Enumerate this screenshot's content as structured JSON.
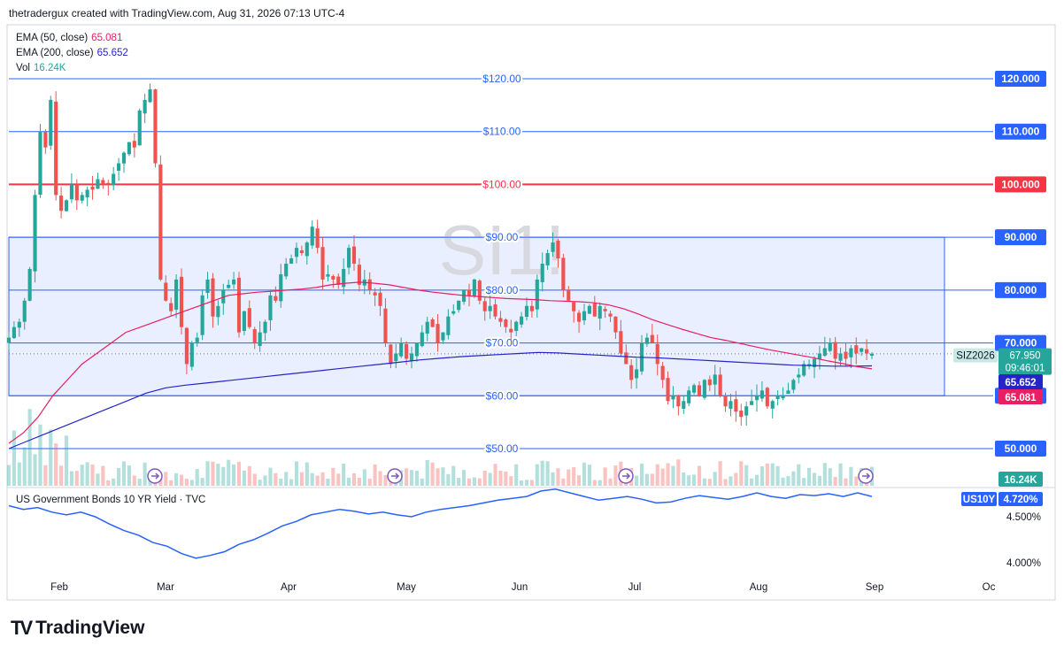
{
  "header": {
    "attribution": "thetradergux created with TradingView.com, Aug 31, 2026 07:13 UTC-4"
  },
  "watermark": "SI1!",
  "legend": [
    {
      "label": "EMA (50, close)",
      "value": "65.081",
      "color": "#e91e63"
    },
    {
      "label": "EMA (200, close)",
      "value": "65.652",
      "color": "#2424c8"
    },
    {
      "label": "Vol",
      "value": "16.24K",
      "color": "#26a69a"
    }
  ],
  "indicator": {
    "title": "US Government Bonds 10 YR Yield · TVC",
    "symbol": "US10Y",
    "value": "4.720%",
    "ticks": [
      "4.500%",
      "4.000%"
    ]
  },
  "footer": {
    "brand": "TradingView"
  },
  "chart_data": {
    "type": "candlestick",
    "symbol": "SIZ2026",
    "last_price": "67.950",
    "countdown": "09:46:01",
    "x_ticks": [
      "Feb",
      "Mar",
      "Apr",
      "May",
      "Jun",
      "Jul",
      "Aug",
      "Sep",
      "Oc"
    ],
    "ylim": [
      46,
      127
    ],
    "price_lines": [
      {
        "value": 120,
        "label": "$120.00",
        "axis_label": "120.000",
        "color": "#2962ff"
      },
      {
        "value": 110,
        "label": "$110.00",
        "axis_label": "110.000",
        "color": "#2962ff"
      },
      {
        "value": 100,
        "label": "$100.00",
        "axis_label": "100.000",
        "color": "#f23645"
      },
      {
        "value": 90,
        "label": "$90.00",
        "axis_label": "90.000",
        "color": "#2962ff"
      },
      {
        "value": 80,
        "label": "$80.00",
        "axis_label": "80.000",
        "color": "#2962ff"
      },
      {
        "value": 70,
        "label": "$70.00",
        "axis_label": "70.000",
        "color": "#2962ff"
      },
      {
        "value": 60,
        "label": "$60.00",
        "axis_label": "60.000",
        "color": "#2962ff"
      },
      {
        "value": 50,
        "label": "$50.00",
        "axis_label": "50.000",
        "color": "#2962ff"
      }
    ],
    "range_box": {
      "from": 60,
      "to": 90
    },
    "axis_badges": [
      {
        "text": "65.652",
        "bg": "#2424c8"
      },
      {
        "text": "65.081",
        "bg": "#e91e63"
      },
      {
        "text": "16.24K",
        "bg": "#26a69a"
      }
    ],
    "close_prices": [
      71,
      73,
      74,
      78,
      84,
      98,
      110,
      107,
      116,
      98,
      95,
      97,
      100,
      97,
      98,
      99,
      99,
      101,
      100,
      100,
      102,
      104,
      106,
      108,
      107,
      114,
      116,
      118,
      104,
      82,
      78,
      76,
      82,
      73,
      66,
      70,
      71,
      79,
      82,
      75,
      77,
      80,
      81,
      82,
      72,
      76,
      73,
      70,
      72,
      74,
      79,
      78,
      83,
      85,
      86,
      88,
      87,
      89,
      92,
      88,
      82,
      83,
      82,
      81,
      84,
      88,
      85,
      81,
      82,
      80,
      79,
      77,
      70,
      66,
      68,
      70,
      67,
      68,
      70,
      72,
      74,
      73,
      70,
      72,
      75,
      76,
      78,
      80,
      79,
      82,
      78,
      76,
      77,
      75,
      74,
      73,
      72,
      74,
      75,
      77,
      76,
      82,
      85,
      87,
      89,
      86,
      80,
      78,
      76,
      74,
      76,
      77,
      75,
      77,
      76,
      75,
      72,
      68,
      66,
      63,
      65,
      70,
      71,
      70,
      66,
      63,
      59,
      60,
      58,
      59,
      61,
      62,
      60,
      63,
      62,
      64,
      60,
      58,
      59,
      57,
      56,
      58,
      59,
      60,
      61,
      58,
      59,
      60,
      60,
      61,
      63,
      64,
      66,
      66,
      67,
      68,
      69,
      70,
      67,
      68,
      67,
      69,
      68,
      69,
      68,
      67.95
    ],
    "ema50": [
      51,
      53,
      56,
      60,
      63,
      66,
      68,
      70,
      72,
      73,
      74,
      75,
      76,
      77,
      78,
      79,
      79.3,
      79.6,
      79.8,
      80,
      80.2,
      80.5,
      81,
      81.3,
      81.5,
      81.3,
      81,
      80.5,
      80,
      79.6,
      79.3,
      79,
      78.8,
      78.6,
      78.4,
      78.3,
      78.2,
      78,
      77.9,
      77.8,
      77.6,
      77.2,
      76.5,
      75.5,
      74.4,
      73.5,
      72.6,
      71.8,
      71,
      70.5,
      69.9,
      69.3,
      68.7,
      68.2,
      67.7,
      67.2,
      66.6,
      66.1,
      65.5,
      65.081
    ],
    "ema200": [
      50,
      51.5,
      53,
      54.5,
      56,
      57.5,
      59,
      60.5,
      61.5,
      62,
      62.4,
      62.8,
      63.2,
      63.6,
      64,
      64.4,
      64.8,
      65.2,
      65.6,
      66,
      66.4,
      66.8,
      67.1,
      67.4,
      67.6,
      67.8,
      68,
      68.2,
      68.1,
      67.9,
      67.7,
      67.5,
      67.3,
      67.2,
      67,
      66.8,
      66.6,
      66.4,
      66.2,
      66,
      65.8,
      65.7,
      65.6,
      65.6,
      65.652
    ],
    "volume_scale_hint": "16.24K",
    "yield_series": [
      4.62,
      4.58,
      4.6,
      4.55,
      4.52,
      4.55,
      4.5,
      4.42,
      4.35,
      4.3,
      4.22,
      4.18,
      4.1,
      4.05,
      4.08,
      4.12,
      4.2,
      4.25,
      4.32,
      4.4,
      4.45,
      4.52,
      4.55,
      4.58,
      4.56,
      4.53,
      4.55,
      4.52,
      4.5,
      4.55,
      4.58,
      4.6,
      4.62,
      4.65,
      4.68,
      4.7,
      4.72,
      4.78,
      4.8,
      4.76,
      4.72,
      4.68,
      4.7,
      4.72,
      4.69,
      4.65,
      4.66,
      4.7,
      4.73,
      4.71,
      4.69,
      4.72,
      4.76,
      4.72,
      4.7,
      4.74,
      4.73,
      4.75,
      4.72,
      4.76,
      4.72
    ],
    "yield_ylim": [
      3.8,
      4.95
    ]
  }
}
